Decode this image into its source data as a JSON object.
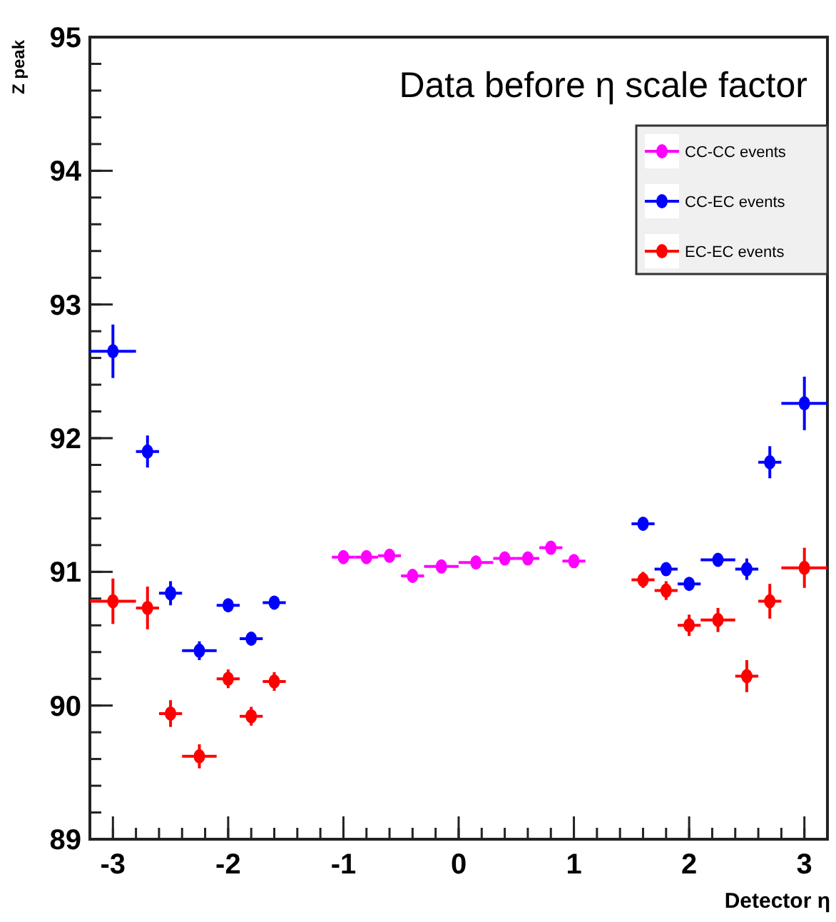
{
  "chart_data": {
    "type": "scatter",
    "title": "Data before η scale factor",
    "xlabel": "Detector η",
    "ylabel": "Z peak",
    "xlim": [
      -3.2,
      3.2
    ],
    "ylim": [
      89,
      95
    ],
    "xticks": [
      -3,
      -2,
      -1,
      0,
      1,
      2,
      3
    ],
    "yticks": [
      89,
      90,
      91,
      92,
      93,
      94,
      95
    ],
    "grid": false,
    "legend": "top right",
    "marker": "circle",
    "series": [
      {
        "name": "CC-CC events",
        "color": "#ff00ff",
        "x": [
          -1.0,
          -0.8,
          -0.6,
          -0.4,
          -0.15,
          0.15,
          0.4,
          0.6,
          0.8,
          1.0
        ],
        "values": [
          91.11,
          91.11,
          91.12,
          90.97,
          91.04,
          91.07,
          91.1,
          91.1,
          91.18,
          91.08
        ],
        "errors": [
          0.05,
          0.05,
          0.05,
          0.05,
          0.05,
          0.05,
          0.05,
          0.05,
          0.05,
          0.05
        ],
        "xerrors": [
          0.1,
          0.1,
          0.1,
          0.1,
          0.15,
          0.15,
          0.1,
          0.1,
          0.1,
          0.1
        ]
      },
      {
        "name": "CC-EC events",
        "color": "#0000ff",
        "x": [
          -3.0,
          -2.7,
          -2.5,
          -2.25,
          -2.0,
          -1.8,
          -1.6,
          1.6,
          1.8,
          2.0,
          2.25,
          2.5,
          2.7,
          3.0
        ],
        "values": [
          92.65,
          91.9,
          90.84,
          90.41,
          90.75,
          90.5,
          90.77,
          91.36,
          91.02,
          90.91,
          91.09,
          91.02,
          91.82,
          92.26
        ],
        "errors": [
          0.2,
          0.12,
          0.09,
          0.07,
          0.05,
          0.05,
          0.05,
          0.05,
          0.05,
          0.05,
          0.05,
          0.08,
          0.12,
          0.2
        ],
        "xerrors": [
          0.2,
          0.1,
          0.1,
          0.15,
          0.1,
          0.1,
          0.1,
          0.1,
          0.1,
          0.1,
          0.15,
          0.1,
          0.1,
          0.2
        ]
      },
      {
        "name": "EC-EC events",
        "color": "#ff0000",
        "x": [
          -3.0,
          -2.7,
          -2.5,
          -2.25,
          -2.0,
          -1.8,
          -1.6,
          1.6,
          1.8,
          2.0,
          2.25,
          2.5,
          2.7,
          3.0
        ],
        "values": [
          90.78,
          90.73,
          89.94,
          89.62,
          90.2,
          89.92,
          90.18,
          90.94,
          90.86,
          90.6,
          90.64,
          90.22,
          90.78,
          91.03
        ],
        "errors": [
          0.17,
          0.16,
          0.1,
          0.09,
          0.07,
          0.07,
          0.07,
          0.06,
          0.07,
          0.08,
          0.09,
          0.12,
          0.13,
          0.15
        ],
        "xerrors": [
          0.2,
          0.1,
          0.1,
          0.15,
          0.1,
          0.1,
          0.1,
          0.1,
          0.1,
          0.1,
          0.15,
          0.1,
          0.1,
          0.2
        ]
      }
    ]
  }
}
